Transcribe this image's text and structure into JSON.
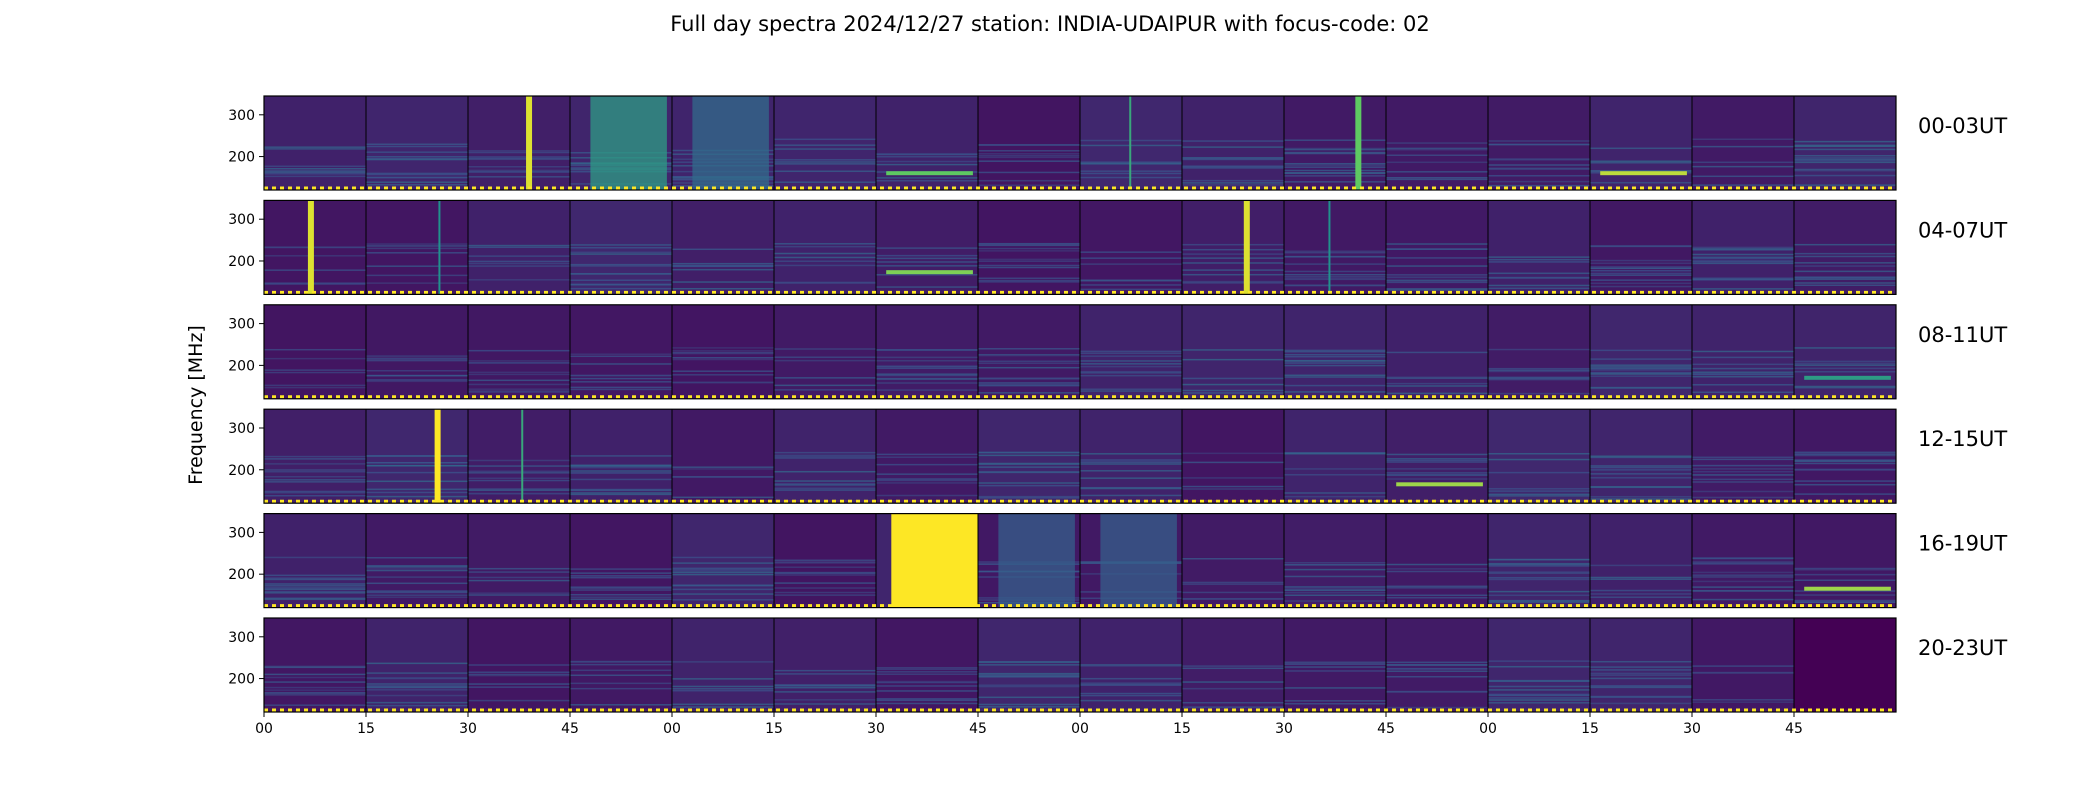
{
  "chart_data": {
    "type": "heatmap",
    "title": "Full day spectra 2024/12/27 station: INDIA-UDAIPUR with focus-code: 02",
    "ylabel": "Frequency [MHz]",
    "xlabel": "",
    "colormap": "viridis",
    "colormap_colors": [
      "#440154",
      "#3b528b",
      "#21918c",
      "#5ec962",
      "#fde725"
    ],
    "ylim": [
      120,
      345
    ],
    "y_ticks": [
      200,
      300
    ],
    "x_tick_labels": [
      "00",
      "15",
      "30",
      "45",
      "00",
      "15",
      "30",
      "45",
      "00",
      "15",
      "30",
      "45",
      "00",
      "15",
      "30",
      "45"
    ],
    "rows": [
      {
        "label": "00-03UT",
        "panels": 16
      },
      {
        "label": "04-07UT",
        "panels": 16
      },
      {
        "label": "08-11UT",
        "panels": 16
      },
      {
        "label": "12-15UT",
        "panels": 16
      },
      {
        "label": "16-19UT",
        "panels": 16
      },
      {
        "label": "20-23UT",
        "panels": 16
      }
    ],
    "features": [
      {
        "row": 0,
        "panel": 2,
        "kind": "vertical-burst",
        "intensity": 0.95
      },
      {
        "row": 0,
        "panel": 3,
        "kind": "broadband-band",
        "intensity": 0.55
      },
      {
        "row": 0,
        "panel": 4,
        "kind": "broadband-band",
        "intensity": 0.35
      },
      {
        "row": 0,
        "panel": 6,
        "kind": "hline",
        "freq": 165,
        "intensity": 0.75
      },
      {
        "row": 0,
        "panel": 8,
        "kind": "vline",
        "intensity": 0.6
      },
      {
        "row": 0,
        "panel": 10,
        "kind": "vertical-burst",
        "intensity": 0.75
      },
      {
        "row": 0,
        "panel": 13,
        "kind": "hline",
        "freq": 165,
        "intensity": 0.9
      },
      {
        "row": 1,
        "panel": 0,
        "kind": "vertical-burst",
        "intensity": 0.95
      },
      {
        "row": 1,
        "panel": 1,
        "kind": "vline",
        "intensity": 0.5
      },
      {
        "row": 1,
        "panel": 6,
        "kind": "hline",
        "freq": 178,
        "intensity": 0.8
      },
      {
        "row": 1,
        "panel": 9,
        "kind": "vertical-burst",
        "intensity": 0.95
      },
      {
        "row": 1,
        "panel": 10,
        "kind": "vline",
        "intensity": 0.5
      },
      {
        "row": 2,
        "panel": 15,
        "kind": "hline",
        "freq": 175,
        "intensity": 0.55
      },
      {
        "row": 3,
        "panel": 1,
        "kind": "vertical-burst",
        "intensity": 1.0
      },
      {
        "row": 3,
        "panel": 2,
        "kind": "vline",
        "intensity": 0.6
      },
      {
        "row": 3,
        "panel": 11,
        "kind": "hline",
        "freq": 170,
        "intensity": 0.85
      },
      {
        "row": 4,
        "panel": 6,
        "kind": "saturated",
        "intensity": 1.0
      },
      {
        "row": 4,
        "panel": 7,
        "kind": "broadband-band",
        "intensity": 0.3
      },
      {
        "row": 4,
        "panel": 8,
        "kind": "broadband-band",
        "intensity": 0.3
      },
      {
        "row": 4,
        "panel": 15,
        "kind": "hline",
        "freq": 170,
        "intensity": 0.85
      },
      {
        "row": 5,
        "panel": 15,
        "kind": "dark",
        "intensity": 0.0
      }
    ]
  }
}
